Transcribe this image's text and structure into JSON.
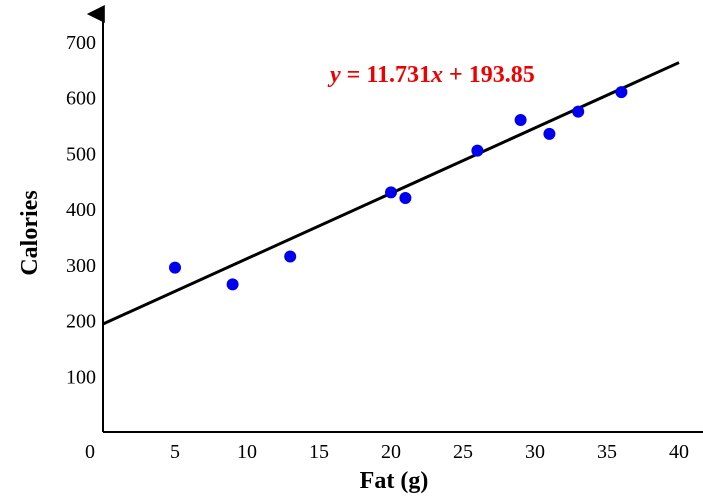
{
  "chart_data": {
    "type": "scatter",
    "xlabel": "Fat (g)",
    "ylabel": "Calories",
    "xlim": [
      0,
      40
    ],
    "ylim": [
      0,
      700
    ],
    "x_ticks": [
      "0",
      "5",
      "10",
      "15",
      "20",
      "25",
      "30",
      "35",
      "40"
    ],
    "y_ticks": [
      "100",
      "200",
      "300",
      "400",
      "500",
      "600",
      "700"
    ],
    "grid": false,
    "series": [
      {
        "points": [
          {
            "x": 5,
            "y": 295
          },
          {
            "x": 9,
            "y": 265
          },
          {
            "x": 13,
            "y": 315
          },
          {
            "x": 20,
            "y": 430
          },
          {
            "x": 21,
            "y": 420
          },
          {
            "x": 26,
            "y": 505
          },
          {
            "x": 29,
            "y": 560
          },
          {
            "x": 31,
            "y": 535
          },
          {
            "x": 33,
            "y": 575
          },
          {
            "x": 36,
            "y": 610
          }
        ],
        "color": "#0000ee"
      }
    ],
    "trendline": {
      "slope": 11.731,
      "intercept": 193.85,
      "x_range": [
        0,
        40
      ],
      "color": "#000000"
    },
    "equation": {
      "y_var": "y",
      "equals_and_slope": " = 11.731",
      "x_var": "x",
      "rest": " + 193.85",
      "color": "#ee0000"
    }
  }
}
